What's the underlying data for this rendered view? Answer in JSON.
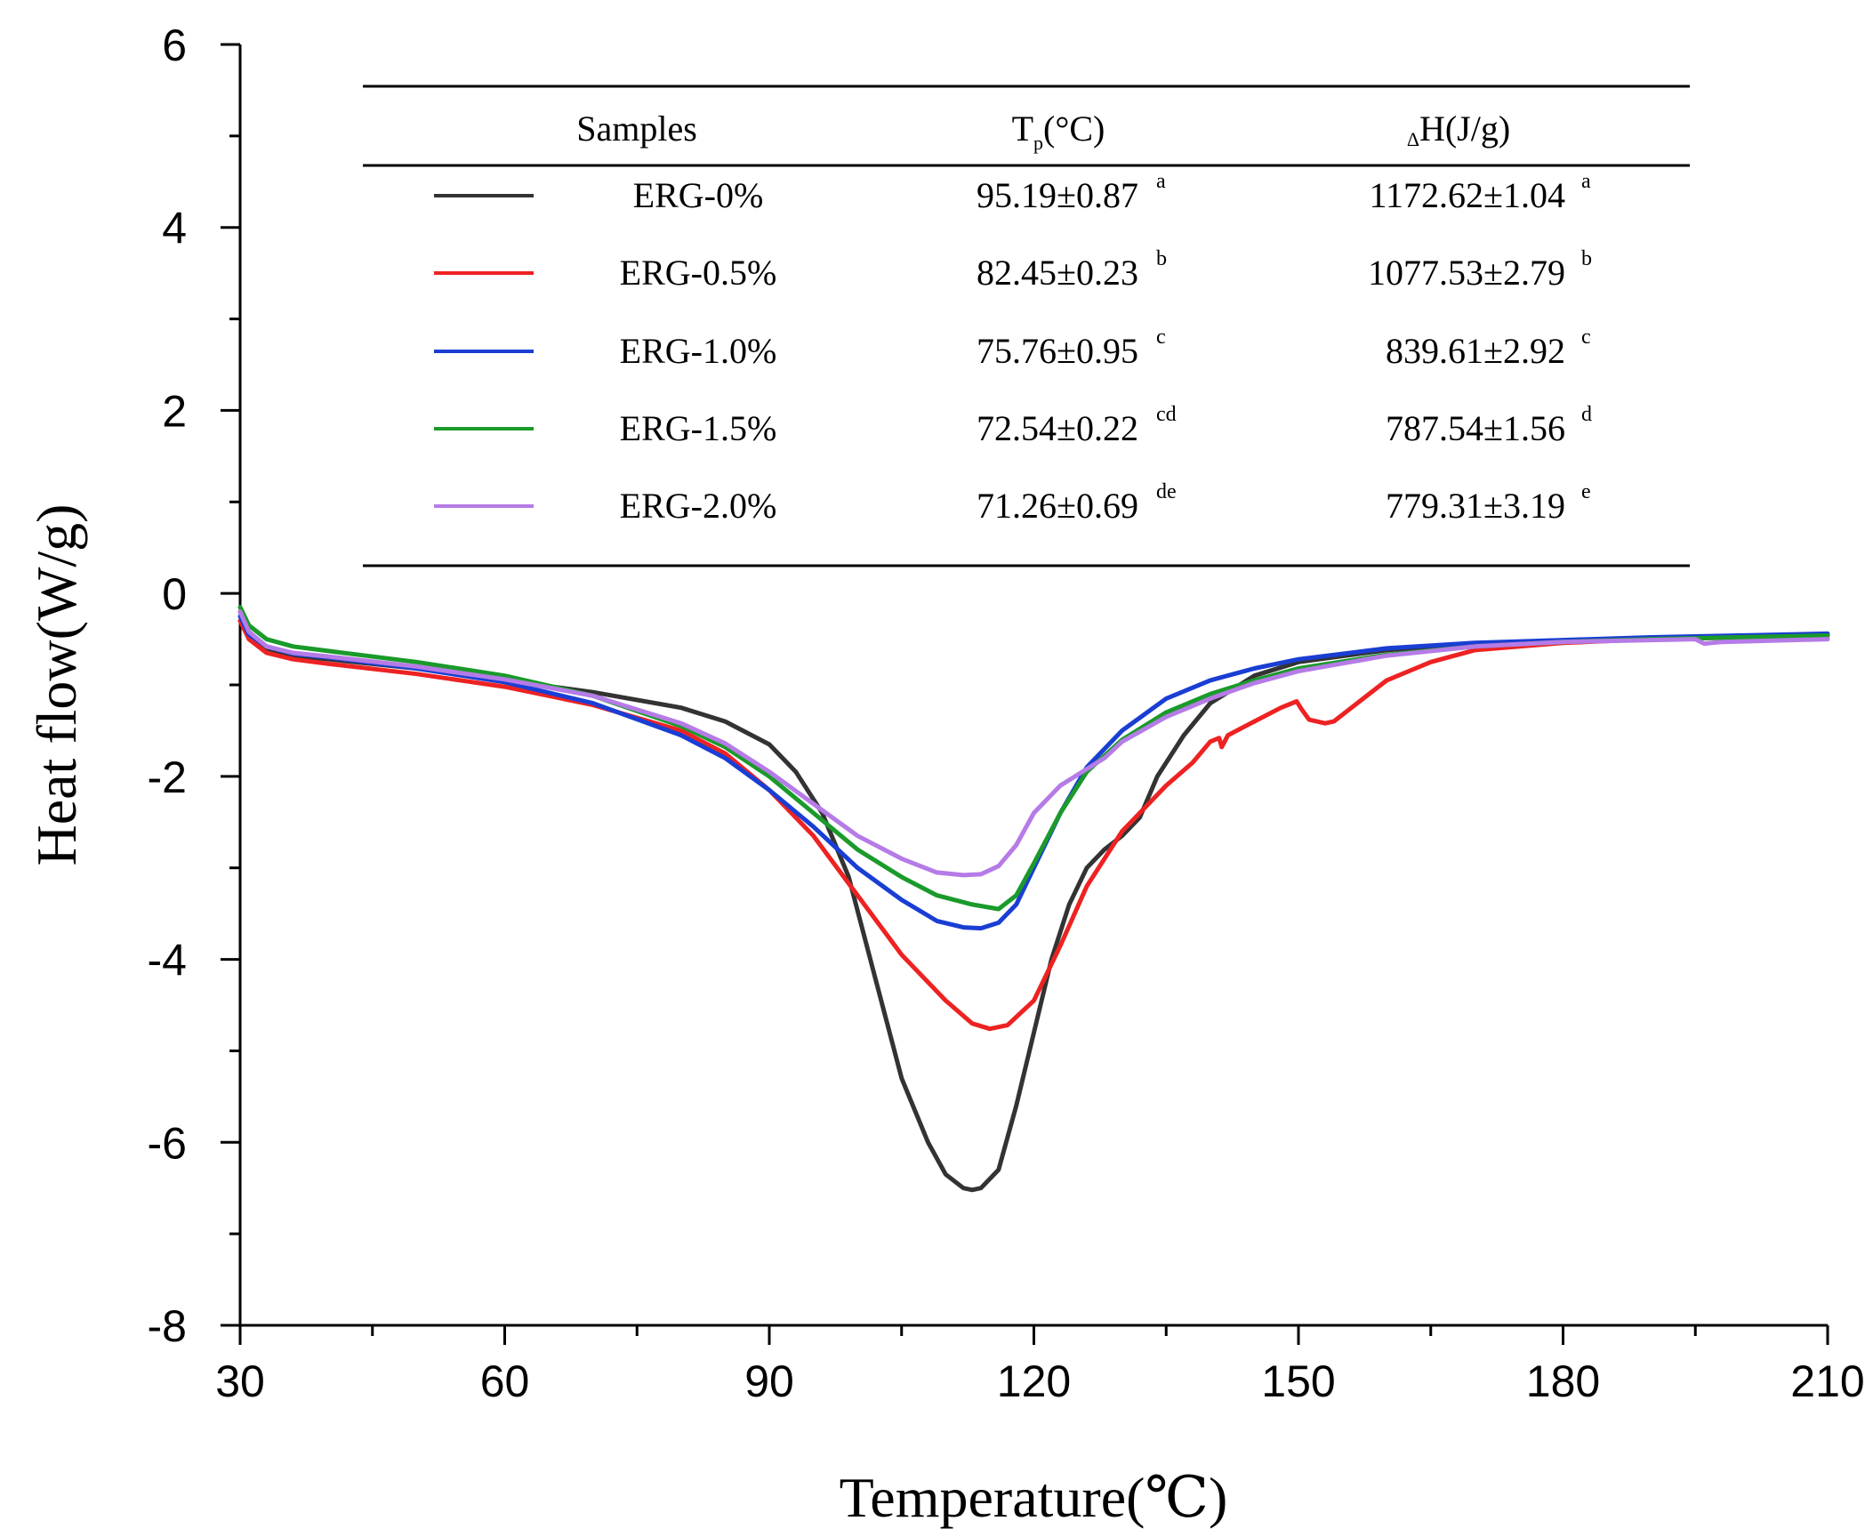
{
  "chart_data": {
    "type": "line",
    "xlabel": "Temperature(℃)",
    "ylabel": "Heat flow(W/g)",
    "xlim": [
      30,
      210
    ],
    "ylim": [
      -8,
      6
    ],
    "xticks": [
      "30",
      "60",
      "90",
      "120",
      "150",
      "180",
      "210"
    ],
    "yticks": [
      "-8",
      "-6",
      "-4",
      "-2",
      "0",
      "2",
      "4",
      "6"
    ],
    "table": {
      "headers": {
        "samples": "Samples",
        "tp_main": "T",
        "tp_sub": "p",
        "tp_unit": "(°C)",
        "dh_prefix": "Δ",
        "dh_main": "H(J/g)"
      },
      "rows": [
        {
          "name": "ERG-0%",
          "tp": "95.19±0.87",
          "tp_sig": "a",
          "dh": "1172.62±1.04",
          "dh_sig": "a"
        },
        {
          "name": "ERG-0.5%",
          "tp": "82.45±0.23",
          "tp_sig": "b",
          "dh": "1077.53±2.79",
          "dh_sig": "b"
        },
        {
          "name": "ERG-1.0%",
          "tp": "75.76±0.95",
          "tp_sig": "c",
          "dh": "839.61±2.92",
          "dh_sig": "c"
        },
        {
          "name": "ERG-1.5%",
          "tp": "72.54±0.22",
          "tp_sig": "cd",
          "dh": "787.54±1.56",
          "dh_sig": "d"
        },
        {
          "name": "ERG-2.0%",
          "tp": "71.26±0.69",
          "tp_sig": "de",
          "dh": "779.31±3.19",
          "dh_sig": "e"
        }
      ]
    },
    "series": [
      {
        "name": "ERG-0%",
        "color": "#333333",
        "points": [
          [
            30,
            -0.2
          ],
          [
            31,
            -0.45
          ],
          [
            33,
            -0.6
          ],
          [
            36,
            -0.68
          ],
          [
            40,
            -0.72
          ],
          [
            50,
            -0.82
          ],
          [
            60,
            -0.95
          ],
          [
            70,
            -1.08
          ],
          [
            80,
            -1.25
          ],
          [
            85,
            -1.4
          ],
          [
            90,
            -1.65
          ],
          [
            93,
            -1.95
          ],
          [
            96,
            -2.4
          ],
          [
            99,
            -3.1
          ],
          [
            102,
            -4.2
          ],
          [
            105,
            -5.3
          ],
          [
            108,
            -6.0
          ],
          [
            110,
            -6.35
          ],
          [
            112,
            -6.5
          ],
          [
            113,
            -6.52
          ],
          [
            114,
            -6.5
          ],
          [
            116,
            -6.3
          ],
          [
            118,
            -5.6
          ],
          [
            120,
            -4.8
          ],
          [
            122,
            -4.0
          ],
          [
            124,
            -3.4
          ],
          [
            126,
            -3.0
          ],
          [
            128,
            -2.8
          ],
          [
            130,
            -2.65
          ],
          [
            132,
            -2.45
          ],
          [
            134,
            -2.0
          ],
          [
            137,
            -1.55
          ],
          [
            140,
            -1.2
          ],
          [
            145,
            -0.9
          ],
          [
            150,
            -0.75
          ],
          [
            160,
            -0.62
          ],
          [
            170,
            -0.55
          ],
          [
            180,
            -0.52
          ],
          [
            190,
            -0.5
          ],
          [
            200,
            -0.48
          ],
          [
            210,
            -0.46
          ]
        ]
      },
      {
        "name": "ERG-0.5%",
        "color": "#ee2222",
        "points": [
          [
            30,
            -0.3
          ],
          [
            31,
            -0.5
          ],
          [
            33,
            -0.65
          ],
          [
            36,
            -0.72
          ],
          [
            40,
            -0.77
          ],
          [
            50,
            -0.88
          ],
          [
            60,
            -1.02
          ],
          [
            70,
            -1.22
          ],
          [
            80,
            -1.5
          ],
          [
            85,
            -1.75
          ],
          [
            90,
            -2.15
          ],
          [
            95,
            -2.65
          ],
          [
            100,
            -3.3
          ],
          [
            105,
            -3.95
          ],
          [
            110,
            -4.45
          ],
          [
            113,
            -4.7
          ],
          [
            115,
            -4.76
          ],
          [
            117,
            -4.72
          ],
          [
            120,
            -4.45
          ],
          [
            123,
            -3.85
          ],
          [
            126,
            -3.2
          ],
          [
            130,
            -2.6
          ],
          [
            135,
            -2.1
          ],
          [
            138,
            -1.85
          ],
          [
            140,
            -1.62
          ],
          [
            141,
            -1.58
          ],
          [
            141.3,
            -1.68
          ],
          [
            142,
            -1.55
          ],
          [
            145,
            -1.4
          ],
          [
            148,
            -1.25
          ],
          [
            149.8,
            -1.18
          ],
          [
            150.3,
            -1.26
          ],
          [
            151.2,
            -1.38
          ],
          [
            153,
            -1.42
          ],
          [
            154,
            -1.4
          ],
          [
            156,
            -1.25
          ],
          [
            160,
            -0.95
          ],
          [
            165,
            -0.75
          ],
          [
            170,
            -0.62
          ],
          [
            180,
            -0.54
          ],
          [
            190,
            -0.5
          ],
          [
            200,
            -0.48
          ],
          [
            210,
            -0.46
          ]
        ]
      },
      {
        "name": "ERG-1.0%",
        "color": "#1a3ed4",
        "points": [
          [
            30,
            -0.25
          ],
          [
            31,
            -0.45
          ],
          [
            33,
            -0.58
          ],
          [
            36,
            -0.66
          ],
          [
            40,
            -0.7
          ],
          [
            50,
            -0.82
          ],
          [
            60,
            -0.97
          ],
          [
            70,
            -1.2
          ],
          [
            80,
            -1.55
          ],
          [
            85,
            -1.8
          ],
          [
            90,
            -2.15
          ],
          [
            95,
            -2.55
          ],
          [
            100,
            -3.0
          ],
          [
            105,
            -3.35
          ],
          [
            109,
            -3.58
          ],
          [
            112,
            -3.65
          ],
          [
            114,
            -3.66
          ],
          [
            116,
            -3.6
          ],
          [
            118,
            -3.4
          ],
          [
            120,
            -3.0
          ],
          [
            123,
            -2.4
          ],
          [
            126,
            -1.9
          ],
          [
            130,
            -1.5
          ],
          [
            135,
            -1.15
          ],
          [
            140,
            -0.95
          ],
          [
            145,
            -0.82
          ],
          [
            150,
            -0.72
          ],
          [
            160,
            -0.6
          ],
          [
            170,
            -0.54
          ],
          [
            180,
            -0.51
          ],
          [
            190,
            -0.48
          ],
          [
            200,
            -0.46
          ],
          [
            210,
            -0.44
          ]
        ]
      },
      {
        "name": "ERG-1.5%",
        "color": "#1a9a2a",
        "points": [
          [
            30,
            -0.15
          ],
          [
            31,
            -0.35
          ],
          [
            33,
            -0.5
          ],
          [
            36,
            -0.58
          ],
          [
            40,
            -0.63
          ],
          [
            50,
            -0.75
          ],
          [
            60,
            -0.9
          ],
          [
            70,
            -1.12
          ],
          [
            80,
            -1.45
          ],
          [
            85,
            -1.68
          ],
          [
            90,
            -2.0
          ],
          [
            95,
            -2.4
          ],
          [
            100,
            -2.8
          ],
          [
            105,
            -3.1
          ],
          [
            109,
            -3.3
          ],
          [
            113,
            -3.4
          ],
          [
            116,
            -3.45
          ],
          [
            118,
            -3.3
          ],
          [
            120,
            -2.95
          ],
          [
            123,
            -2.4
          ],
          [
            126,
            -1.95
          ],
          [
            130,
            -1.6
          ],
          [
            135,
            -1.3
          ],
          [
            140,
            -1.1
          ],
          [
            145,
            -0.95
          ],
          [
            150,
            -0.82
          ],
          [
            160,
            -0.67
          ],
          [
            170,
            -0.58
          ],
          [
            180,
            -0.53
          ],
          [
            190,
            -0.5
          ],
          [
            200,
            -0.48
          ],
          [
            210,
            -0.46
          ]
        ]
      },
      {
        "name": "ERG-2.0%",
        "color": "#b57be6",
        "points": [
          [
            30,
            -0.2
          ],
          [
            31,
            -0.42
          ],
          [
            33,
            -0.58
          ],
          [
            36,
            -0.65
          ],
          [
            40,
            -0.69
          ],
          [
            50,
            -0.8
          ],
          [
            60,
            -0.94
          ],
          [
            70,
            -1.12
          ],
          [
            80,
            -1.42
          ],
          [
            85,
            -1.64
          ],
          [
            90,
            -1.95
          ],
          [
            95,
            -2.3
          ],
          [
            100,
            -2.65
          ],
          [
            105,
            -2.9
          ],
          [
            109,
            -3.05
          ],
          [
            112,
            -3.08
          ],
          [
            114,
            -3.07
          ],
          [
            116,
            -2.98
          ],
          [
            118,
            -2.75
          ],
          [
            120,
            -2.4
          ],
          [
            123,
            -2.1
          ],
          [
            126,
            -1.92
          ],
          [
            128,
            -1.8
          ],
          [
            130,
            -1.62
          ],
          [
            135,
            -1.35
          ],
          [
            140,
            -1.15
          ],
          [
            145,
            -0.98
          ],
          [
            150,
            -0.85
          ],
          [
            160,
            -0.68
          ],
          [
            170,
            -0.58
          ],
          [
            180,
            -0.53
          ],
          [
            190,
            -0.51
          ],
          [
            195,
            -0.5
          ],
          [
            196,
            -0.55
          ],
          [
            198,
            -0.53
          ],
          [
            210,
            -0.5
          ]
        ]
      }
    ]
  }
}
